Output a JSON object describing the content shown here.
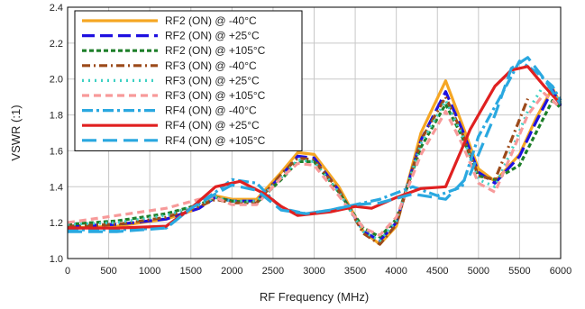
{
  "chart_data": {
    "type": "line",
    "title": "",
    "xlabel": "RF Frequency (MHz)",
    "ylabel": "VSWR (:1)",
    "xlim": [
      0,
      6000
    ],
    "ylim": [
      1.0,
      2.4
    ],
    "xticks": [
      0,
      500,
      1000,
      1500,
      2000,
      2500,
      3000,
      3500,
      4000,
      4500,
      5000,
      5500,
      6000
    ],
    "yticks": [
      1.0,
      1.2,
      1.4,
      1.6,
      1.8,
      2.0,
      2.2,
      2.4
    ],
    "xtick_labels": [
      "0",
      "500",
      "1000",
      "1500",
      "2000",
      "2500",
      "3000",
      "3500",
      "4000",
      "4500",
      "5000",
      "5500",
      "6000"
    ],
    "ytick_labels": [
      "1.0",
      "1.2",
      "1.4",
      "1.6",
      "1.8",
      "2.0",
      "2.2",
      "2.4"
    ],
    "grid": true,
    "legend_position": "top-left",
    "series": [
      {
        "name": "RF2 (ON) @ -40°C",
        "color": "#F5A623",
        "dash": "solid",
        "points": [
          [
            0,
            1.17
          ],
          [
            600,
            1.18
          ],
          [
            1200,
            1.22
          ],
          [
            1600,
            1.28
          ],
          [
            1800,
            1.35
          ],
          [
            2000,
            1.33
          ],
          [
            2300,
            1.33
          ],
          [
            2600,
            1.48
          ],
          [
            2800,
            1.59
          ],
          [
            3000,
            1.58
          ],
          [
            3300,
            1.4
          ],
          [
            3600,
            1.15
          ],
          [
            3800,
            1.08
          ],
          [
            4000,
            1.18
          ],
          [
            4300,
            1.7
          ],
          [
            4600,
            1.99
          ],
          [
            4800,
            1.75
          ],
          [
            5000,
            1.5
          ],
          [
            5200,
            1.43
          ],
          [
            5500,
            1.58
          ],
          [
            5700,
            1.78
          ],
          [
            5900,
            1.95
          ],
          [
            6000,
            1.86
          ]
        ]
      },
      {
        "name": "RF2 (ON) @ +25°C",
        "color": "#1F10E0",
        "dash": "long",
        "points": [
          [
            0,
            1.18
          ],
          [
            600,
            1.19
          ],
          [
            1200,
            1.22
          ],
          [
            1600,
            1.28
          ],
          [
            1800,
            1.34
          ],
          [
            2000,
            1.32
          ],
          [
            2300,
            1.32
          ],
          [
            2600,
            1.46
          ],
          [
            2800,
            1.57
          ],
          [
            3000,
            1.56
          ],
          [
            3300,
            1.38
          ],
          [
            3600,
            1.15
          ],
          [
            3800,
            1.1
          ],
          [
            4000,
            1.2
          ],
          [
            4300,
            1.66
          ],
          [
            4600,
            1.93
          ],
          [
            4800,
            1.72
          ],
          [
            5000,
            1.48
          ],
          [
            5200,
            1.42
          ],
          [
            5500,
            1.57
          ],
          [
            5700,
            1.76
          ],
          [
            5900,
            1.94
          ],
          [
            6000,
            1.85
          ]
        ]
      },
      {
        "name": "RF2 (ON) @ +105°C",
        "color": "#1E7F2A",
        "dash": "short",
        "points": [
          [
            0,
            1.19
          ],
          [
            600,
            1.21
          ],
          [
            1200,
            1.25
          ],
          [
            1600,
            1.3
          ],
          [
            1800,
            1.34
          ],
          [
            2000,
            1.32
          ],
          [
            2300,
            1.31
          ],
          [
            2600,
            1.44
          ],
          [
            2800,
            1.54
          ],
          [
            3000,
            1.54
          ],
          [
            3300,
            1.37
          ],
          [
            3600,
            1.17
          ],
          [
            3800,
            1.12
          ],
          [
            4000,
            1.22
          ],
          [
            4300,
            1.62
          ],
          [
            4600,
            1.86
          ],
          [
            4800,
            1.68
          ],
          [
            5000,
            1.46
          ],
          [
            5200,
            1.44
          ],
          [
            5500,
            1.52
          ],
          [
            5700,
            1.7
          ],
          [
            5900,
            1.88
          ],
          [
            6000,
            1.84
          ]
        ]
      },
      {
        "name": "RF3 (ON) @ -40°C",
        "color": "#9C4A1A",
        "dash": "dashdot",
        "points": [
          [
            0,
            1.18
          ],
          [
            600,
            1.19
          ],
          [
            1200,
            1.23
          ],
          [
            1600,
            1.29
          ],
          [
            1800,
            1.33
          ],
          [
            2000,
            1.31
          ],
          [
            2300,
            1.31
          ],
          [
            2600,
            1.47
          ],
          [
            2800,
            1.56
          ],
          [
            3000,
            1.55
          ],
          [
            3300,
            1.38
          ],
          [
            3600,
            1.14
          ],
          [
            3800,
            1.08
          ],
          [
            4000,
            1.19
          ],
          [
            4300,
            1.66
          ],
          [
            4600,
            1.9
          ],
          [
            4800,
            1.7
          ],
          [
            5000,
            1.46
          ],
          [
            5200,
            1.44
          ],
          [
            5400,
            1.66
          ],
          [
            5600,
            1.89
          ]
        ]
      },
      {
        "name": "RF3 (ON) @ +25°C",
        "color": "#3FD1C4",
        "dash": "dotgap",
        "points": [
          [
            0,
            1.19
          ],
          [
            600,
            1.2
          ],
          [
            1200,
            1.24
          ],
          [
            1600,
            1.3
          ],
          [
            1800,
            1.34
          ],
          [
            2000,
            1.32
          ],
          [
            2300,
            1.32
          ],
          [
            2600,
            1.45
          ],
          [
            2800,
            1.55
          ],
          [
            3000,
            1.54
          ],
          [
            3300,
            1.37
          ],
          [
            3600,
            1.15
          ],
          [
            3800,
            1.1
          ],
          [
            4000,
            1.21
          ],
          [
            4300,
            1.64
          ],
          [
            4600,
            1.88
          ],
          [
            4800,
            1.69
          ],
          [
            5000,
            1.44
          ],
          [
            5200,
            1.4
          ],
          [
            5400,
            1.6
          ],
          [
            5600,
            1.82
          ],
          [
            5800,
            1.97
          ],
          [
            6000,
            1.87
          ]
        ]
      },
      {
        "name": "RF3 (ON) @ +105°C",
        "color": "#F79A9A",
        "dash": "medium",
        "points": [
          [
            0,
            1.2
          ],
          [
            600,
            1.24
          ],
          [
            1200,
            1.28
          ],
          [
            1600,
            1.33
          ],
          [
            1800,
            1.34
          ],
          [
            2000,
            1.3
          ],
          [
            2300,
            1.3
          ],
          [
            2600,
            1.45
          ],
          [
            2800,
            1.53
          ],
          [
            3000,
            1.52
          ],
          [
            3300,
            1.35
          ],
          [
            3600,
            1.17
          ],
          [
            3800,
            1.13
          ],
          [
            4000,
            1.23
          ],
          [
            4300,
            1.58
          ],
          [
            4600,
            1.82
          ],
          [
            4800,
            1.64
          ],
          [
            5000,
            1.42
          ],
          [
            5200,
            1.37
          ],
          [
            5400,
            1.58
          ],
          [
            5600,
            1.8
          ],
          [
            5800,
            1.92
          ],
          [
            6000,
            1.84
          ]
        ]
      },
      {
        "name": "RF4 (ON) @ -40°C",
        "color": "#2AA8E0",
        "dash": "dashdot2",
        "points": [
          [
            0,
            1.16
          ],
          [
            600,
            1.16
          ],
          [
            1200,
            1.17
          ],
          [
            1500,
            1.28
          ],
          [
            1800,
            1.37
          ],
          [
            2000,
            1.44
          ],
          [
            2300,
            1.42
          ],
          [
            2600,
            1.28
          ],
          [
            2900,
            1.25
          ],
          [
            3200,
            1.27
          ],
          [
            3500,
            1.3
          ],
          [
            3800,
            1.33
          ],
          [
            4200,
            1.4
          ],
          [
            4500,
            1.35
          ],
          [
            4800,
            1.4
          ],
          [
            5000,
            1.68
          ],
          [
            5300,
            1.93
          ],
          [
            5500,
            2.1
          ],
          [
            5700,
            2.04
          ],
          [
            5900,
            1.96
          ],
          [
            6000,
            1.88
          ]
        ]
      },
      {
        "name": "RF4 (ON) @ +25°C",
        "color": "#E02020",
        "dash": "solid",
        "points": [
          [
            0,
            1.17
          ],
          [
            600,
            1.17
          ],
          [
            1200,
            1.18
          ],
          [
            1500,
            1.28
          ],
          [
            1800,
            1.4
          ],
          [
            2100,
            1.43
          ],
          [
            2400,
            1.36
          ],
          [
            2600,
            1.29
          ],
          [
            2800,
            1.24
          ],
          [
            3200,
            1.26
          ],
          [
            3500,
            1.29
          ],
          [
            3700,
            1.28
          ],
          [
            4000,
            1.34
          ],
          [
            4300,
            1.39
          ],
          [
            4600,
            1.4
          ],
          [
            4900,
            1.72
          ],
          [
            5200,
            1.96
          ],
          [
            5400,
            2.05
          ],
          [
            5600,
            2.07
          ],
          [
            5800,
            1.96
          ],
          [
            6000,
            1.86
          ]
        ]
      },
      {
        "name": "RF4 (ON) @ +105°C",
        "color": "#2AA8E0",
        "dash": "verylong",
        "points": [
          [
            0,
            1.15
          ],
          [
            600,
            1.15
          ],
          [
            1200,
            1.17
          ],
          [
            1500,
            1.28
          ],
          [
            1800,
            1.36
          ],
          [
            2000,
            1.41
          ],
          [
            2300,
            1.38
          ],
          [
            2600,
            1.27
          ],
          [
            2900,
            1.25
          ],
          [
            3200,
            1.27
          ],
          [
            3500,
            1.3
          ],
          [
            3800,
            1.31
          ],
          [
            4200,
            1.36
          ],
          [
            4600,
            1.33
          ],
          [
            4900,
            1.47
          ],
          [
            5200,
            1.8
          ],
          [
            5400,
            2.06
          ],
          [
            5600,
            2.12
          ],
          [
            5800,
            2.0
          ],
          [
            6000,
            1.86
          ]
        ]
      }
    ]
  }
}
